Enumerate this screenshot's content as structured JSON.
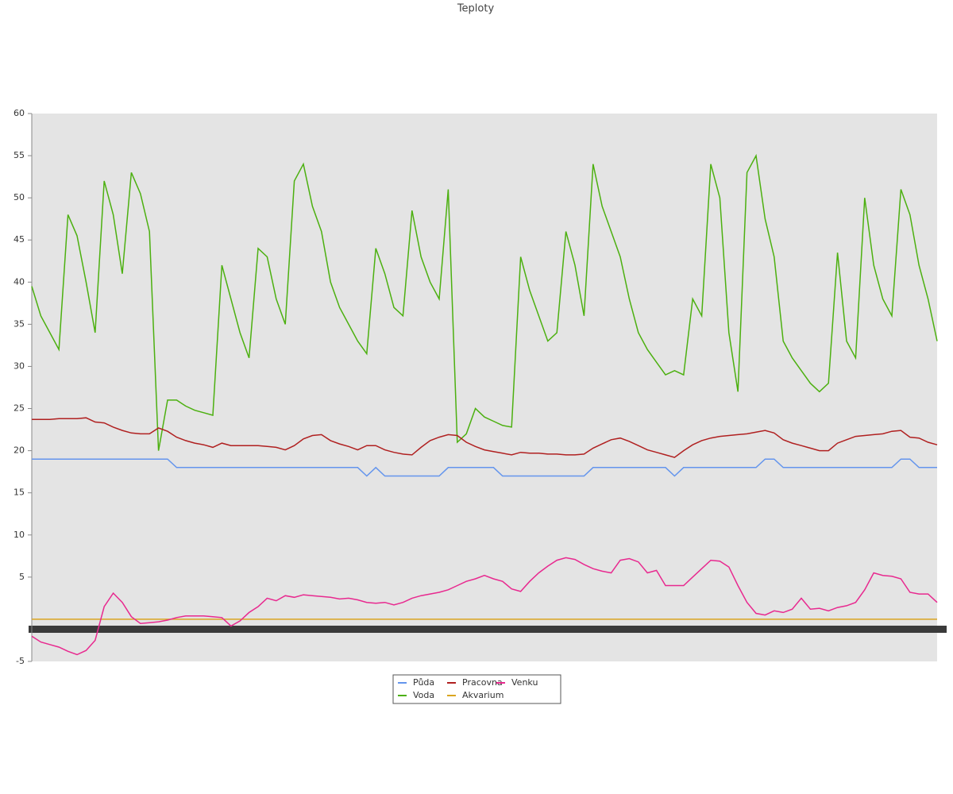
{
  "chart_data": {
    "type": "line",
    "title": "Teploty",
    "x": [
      0,
      1,
      2,
      3,
      4,
      5,
      6,
      7,
      8,
      9,
      10,
      11,
      12,
      13,
      14,
      15,
      16,
      17,
      18,
      19,
      20,
      21,
      22,
      23,
      24,
      25,
      26,
      27,
      28,
      29,
      30,
      31,
      32,
      33,
      34,
      35,
      36,
      37,
      38,
      39,
      40,
      41,
      42,
      43,
      44,
      45,
      46,
      47,
      48,
      49,
      50,
      51,
      52,
      53,
      54,
      55,
      56,
      57,
      58,
      59,
      60,
      61,
      62,
      63,
      64,
      65,
      66,
      67,
      68,
      69,
      70,
      71,
      72,
      73,
      74,
      75,
      76,
      77,
      78,
      79,
      80,
      81,
      82,
      83,
      84,
      85,
      86,
      87,
      88,
      89,
      90,
      91,
      92,
      93,
      94,
      95,
      96,
      97,
      98,
      99,
      100
    ],
    "xlim": [
      0,
      100
    ],
    "ylim": [
      -5,
      60
    ],
    "yticks": [
      -5,
      5,
      10,
      15,
      20,
      25,
      30,
      35,
      40,
      45,
      50,
      55,
      60
    ],
    "series": [
      {
        "name": "Půda",
        "color": "#6495ed",
        "values": [
          19,
          19,
          19,
          19,
          19,
          19,
          19,
          19,
          19,
          19,
          19,
          19,
          19,
          19,
          19,
          19,
          18,
          18,
          18,
          18,
          18,
          18,
          18,
          18,
          18,
          18,
          18,
          18,
          18,
          18,
          18,
          18,
          18,
          18,
          18,
          18,
          18,
          17,
          18,
          17,
          17,
          17,
          17,
          17,
          17,
          17,
          18,
          18,
          18,
          18,
          18,
          18,
          17,
          17,
          17,
          17,
          17,
          17,
          17,
          17,
          17,
          17,
          18,
          18,
          18,
          18,
          18,
          18,
          18,
          18,
          18,
          17,
          18,
          18,
          18,
          18,
          18,
          18,
          18,
          18,
          18,
          19,
          19,
          18,
          18,
          18,
          18,
          18,
          18,
          18,
          18,
          18,
          18,
          18,
          18,
          18,
          19,
          19,
          18,
          18,
          18
        ]
      },
      {
        "name": "Voda",
        "color": "#4cb010",
        "values": [
          39.5,
          36,
          34,
          32,
          48,
          45.5,
          40,
          34,
          52,
          48,
          41,
          53,
          50.5,
          46,
          20,
          26,
          26,
          25.3,
          24.8,
          24.5,
          24.2,
          42,
          38,
          34,
          31,
          44,
          43,
          38,
          35,
          52,
          54,
          49,
          46,
          40,
          37,
          35,
          33,
          31.5,
          44,
          41,
          37,
          36,
          48.5,
          43,
          40,
          38,
          51,
          21,
          22,
          25,
          24,
          23.5,
          23,
          22.8,
          43,
          39,
          36,
          33,
          34,
          46,
          42,
          36,
          54,
          49,
          46,
          43,
          38,
          34,
          32,
          30.5,
          29,
          29.5,
          29,
          38,
          36,
          54,
          50,
          34,
          27,
          53,
          55,
          47.5,
          43,
          33,
          31,
          29.5,
          28,
          27,
          28,
          43.5,
          33,
          31,
          50,
          42,
          38,
          36,
          51,
          48,
          42,
          38,
          33
        ]
      },
      {
        "name": "Pracovna",
        "color": "#b02020",
        "values": [
          23.7,
          23.7,
          23.7,
          23.8,
          23.8,
          23.8,
          23.9,
          23.4,
          23.3,
          22.8,
          22.4,
          22.1,
          22,
          22,
          22.7,
          22.3,
          21.6,
          21.2,
          20.9,
          20.7,
          20.4,
          20.9,
          20.6,
          20.6,
          20.6,
          20.6,
          20.5,
          20.4,
          20.1,
          20.6,
          21.4,
          21.8,
          21.9,
          21.2,
          20.8,
          20.5,
          20.1,
          20.6,
          20.6,
          20.1,
          19.8,
          19.6,
          19.5,
          20.4,
          21.2,
          21.6,
          21.9,
          21.8,
          21,
          20.5,
          20.1,
          19.9,
          19.7,
          19.5,
          19.8,
          19.7,
          19.7,
          19.6,
          19.6,
          19.5,
          19.5,
          19.6,
          20.3,
          20.8,
          21.3,
          21.5,
          21.1,
          20.6,
          20.1,
          19.8,
          19.5,
          19.2,
          20,
          20.7,
          21.2,
          21.5,
          21.7,
          21.8,
          21.9,
          22,
          22.2,
          22.4,
          22.1,
          21.3,
          20.9,
          20.6,
          20.3,
          20,
          20,
          20.9,
          21.3,
          21.7,
          21.8,
          21.9,
          22,
          22.3,
          22.4,
          21.6,
          21.5,
          21,
          20.7
        ]
      },
      {
        "name": "Akvarium",
        "color": "#daa520",
        "values": [
          0,
          0,
          0,
          0,
          0,
          0,
          0,
          0,
          0,
          0,
          0,
          0,
          0,
          0,
          0,
          0,
          0,
          0,
          0,
          0,
          0,
          0,
          0,
          0,
          0,
          0,
          0,
          0,
          0,
          0,
          0,
          0,
          0,
          0,
          0,
          0,
          0,
          0,
          0,
          0,
          0,
          0,
          0,
          0,
          0,
          0,
          0,
          0,
          0,
          0,
          0,
          0,
          0,
          0,
          0,
          0,
          0,
          0,
          0,
          0,
          0,
          0,
          0,
          0,
          0,
          0,
          0,
          0,
          0,
          0,
          0,
          0,
          0,
          0,
          0,
          0,
          0,
          0,
          0,
          0,
          0,
          0,
          0,
          0,
          0,
          0,
          0,
          0,
          0,
          0,
          0,
          0,
          0,
          0,
          0,
          0,
          0,
          0,
          0,
          0,
          0
        ]
      },
      {
        "name": "Venku",
        "color": "#e8298f",
        "values": [
          -2,
          -2.7,
          -3,
          -3.3,
          -3.8,
          -4.2,
          -3.7,
          -2.5,
          1.5,
          3.1,
          2,
          0.3,
          -0.5,
          -0.4,
          -0.3,
          -0.1,
          0.2,
          0.4,
          0.4,
          0.4,
          0.3,
          0.2,
          -0.8,
          -0.2,
          0.8,
          1.5,
          2.5,
          2.2,
          2.8,
          2.6,
          2.9,
          2.8,
          2.7,
          2.6,
          2.4,
          2.5,
          2.3,
          2,
          1.9,
          2,
          1.7,
          2,
          2.5,
          2.8,
          3,
          3.2,
          3.5,
          4,
          4.5,
          4.8,
          5.2,
          4.8,
          4.5,
          3.6,
          3.3,
          4.5,
          5.5,
          6.3,
          7,
          7.3,
          7.1,
          6.5,
          6,
          5.7,
          5.5,
          7,
          7.2,
          6.8,
          5.5,
          5.8,
          4,
          4,
          4,
          5,
          6,
          7,
          6.9,
          6.2,
          4,
          2,
          0.7,
          0.5,
          1,
          0.8,
          1.2,
          2.5,
          1.2,
          1.3,
          1,
          1.4,
          1.6,
          2,
          3.5,
          5.5,
          5.2,
          5.1,
          4.8,
          3.2,
          3,
          3,
          2
        ]
      }
    ]
  }
}
